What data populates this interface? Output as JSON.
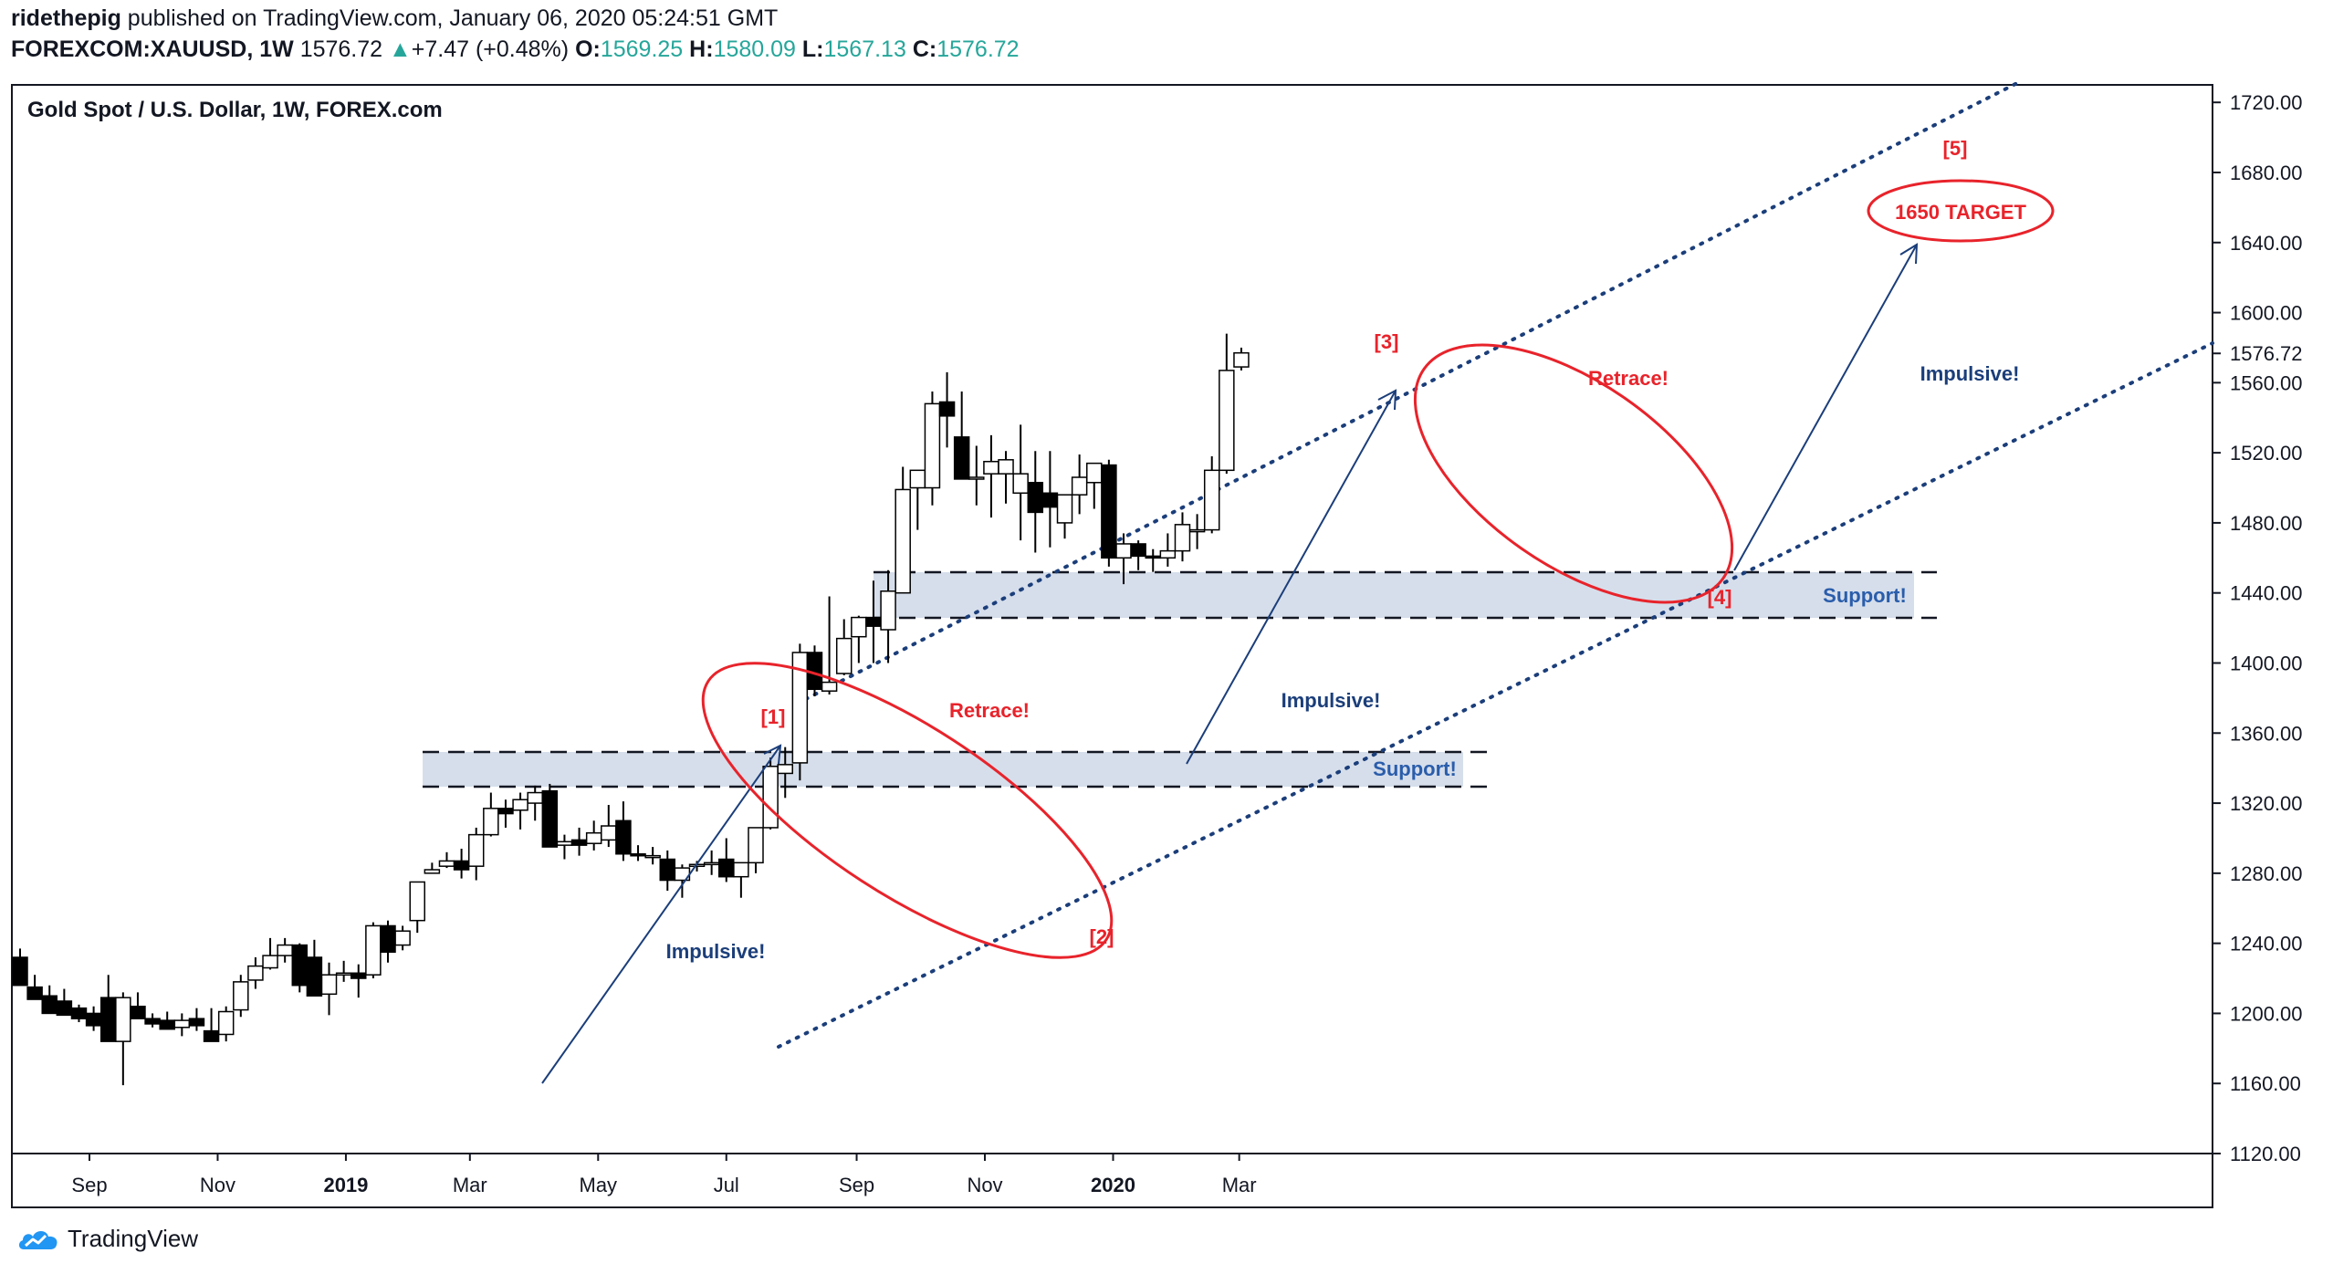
{
  "header": {
    "author": "ridethepig",
    "published_text": "published on TradingView.com, January 06, 2020 05:24:51 GMT",
    "symbol": "FOREXCOM:XAUUSD, 1W",
    "last_price": "1576.72",
    "change_arrow": "▲",
    "change": "+7.47 (+0.48%)",
    "open_label": "O:",
    "open": "1569.25",
    "high_label": "H:",
    "high": "1580.09",
    "low_label": "L:",
    "low": "1567.13",
    "close_label": "C:",
    "close": "1576.72"
  },
  "footer": {
    "brand": "TradingView"
  },
  "colors": {
    "up_candle_fill": "#ffffff",
    "down_candle_fill": "#000000",
    "annotation_red": "#e8232b",
    "annotation_blue": "#1b3e7a",
    "zone_fill": "#d6deeb",
    "change_green": "#26a69a"
  },
  "chart_data": {
    "type": "candlestick",
    "title": "Gold Spot / U.S. Dollar, 1W, FOREX.com",
    "ylim": [
      1120,
      1730
    ],
    "y_ticks": [
      "1720.00",
      "1680.00",
      "1640.00",
      "1600.00",
      "1560.00",
      "1520.00",
      "1480.00",
      "1440.00",
      "1400.00",
      "1360.00",
      "1320.00",
      "1280.00",
      "1240.00",
      "1200.00",
      "1160.00",
      "1120.00"
    ],
    "last_price_label": "1576.72",
    "last_price": 1576.72,
    "x_start": "2018-07-30",
    "x_ticks": [
      {
        "label": "Sep",
        "date": "2018-09-01",
        "bold": false
      },
      {
        "label": "Nov",
        "date": "2018-11-01",
        "bold": false
      },
      {
        "label": "2019",
        "date": "2019-01-01",
        "bold": true
      },
      {
        "label": "Mar",
        "date": "2019-03-01",
        "bold": false
      },
      {
        "label": "May",
        "date": "2019-05-01",
        "bold": false
      },
      {
        "label": "Jul",
        "date": "2019-07-01",
        "bold": false
      },
      {
        "label": "Sep",
        "date": "2019-09-01",
        "bold": false
      },
      {
        "label": "Nov",
        "date": "2019-11-01",
        "bold": false
      },
      {
        "label": "2020",
        "date": "2020-01-01",
        "bold": true
      },
      {
        "label": "Mar",
        "date": "2020-03-01",
        "bold": false
      }
    ],
    "candles_ohlc": [
      [
        1232,
        1237,
        1225,
        1216
      ],
      [
        1215,
        1222,
        1210,
        1208
      ],
      [
        1210,
        1216,
        1205,
        1200
      ],
      [
        1207,
        1214,
        1201,
        1199
      ],
      [
        1203,
        1205,
        1195,
        1197
      ],
      [
        1200,
        1204,
        1190,
        1193
      ],
      [
        1209,
        1222,
        1184,
        1184
      ],
      [
        1184,
        1212,
        1159,
        1209
      ],
      [
        1204,
        1212,
        1201,
        1197
      ],
      [
        1197,
        1200,
        1192,
        1194
      ],
      [
        1196,
        1201,
        1192,
        1191
      ],
      [
        1192,
        1200,
        1187,
        1196
      ],
      [
        1197,
        1203,
        1190,
        1193
      ],
      [
        1190,
        1203,
        1186,
        1184
      ],
      [
        1188,
        1204,
        1184,
        1201
      ],
      [
        1202,
        1222,
        1198,
        1218
      ],
      [
        1219,
        1232,
        1214,
        1227
      ],
      [
        1226,
        1243,
        1225,
        1233
      ],
      [
        1233,
        1243,
        1229,
        1239
      ],
      [
        1239,
        1240,
        1212,
        1216
      ],
      [
        1232,
        1242,
        1226,
        1210
      ],
      [
        1211,
        1229,
        1199,
        1222
      ],
      [
        1222,
        1230,
        1218,
        1223
      ],
      [
        1223,
        1228,
        1209,
        1220
      ],
      [
        1222,
        1252,
        1220,
        1250
      ],
      [
        1250,
        1253,
        1229,
        1235
      ],
      [
        1239,
        1250,
        1236,
        1247
      ],
      [
        1253,
        1272,
        1246,
        1275
      ],
      [
        1280,
        1286,
        1280,
        1282
      ],
      [
        1284,
        1292,
        1283,
        1287
      ],
      [
        1287,
        1294,
        1277,
        1282
      ],
      [
        1284,
        1306,
        1276,
        1302
      ],
      [
        1302,
        1326,
        1301,
        1317
      ],
      [
        1317,
        1322,
        1306,
        1314
      ],
      [
        1316,
        1326,
        1305,
        1322
      ],
      [
        1320,
        1330,
        1310,
        1326
      ],
      [
        1327,
        1331,
        1306,
        1295
      ],
      [
        1296,
        1302,
        1288,
        1298
      ],
      [
        1299,
        1306,
        1290,
        1296
      ],
      [
        1297,
        1310,
        1293,
        1303
      ],
      [
        1299,
        1319,
        1295,
        1307
      ],
      [
        1310,
        1321,
        1287,
        1291
      ],
      [
        1291,
        1296,
        1287,
        1290
      ],
      [
        1290,
        1295,
        1285,
        1290
      ],
      [
        1288,
        1293,
        1270,
        1276
      ],
      [
        1276,
        1285,
        1266,
        1283
      ],
      [
        1284,
        1287,
        1281,
        1285
      ],
      [
        1285,
        1293,
        1279,
        1286
      ],
      [
        1288,
        1300,
        1275,
        1278
      ],
      [
        1278,
        1286,
        1266,
        1286
      ],
      [
        1286,
        1305,
        1280,
        1306
      ],
      [
        1306,
        1346,
        1305,
        1341
      ],
      [
        1337,
        1352,
        1323,
        1342
      ],
      [
        1343,
        1411,
        1333,
        1406
      ],
      [
        1406,
        1410,
        1381,
        1385
      ],
      [
        1384,
        1438,
        1382,
        1389
      ],
      [
        1394,
        1425,
        1393,
        1414
      ],
      [
        1415,
        1427,
        1400,
        1426
      ],
      [
        1426,
        1447,
        1400,
        1421
      ],
      [
        1419,
        1453,
        1400,
        1441
      ],
      [
        1440,
        1512,
        1440,
        1499
      ],
      [
        1500,
        1510,
        1476,
        1510
      ],
      [
        1500,
        1555,
        1490,
        1548
      ],
      [
        1549,
        1566,
        1523,
        1541
      ],
      [
        1529,
        1555,
        1512,
        1505
      ],
      [
        1506,
        1524,
        1490,
        1506
      ],
      [
        1508,
        1530,
        1483,
        1515
      ],
      [
        1508,
        1521,
        1491,
        1516
      ],
      [
        1497,
        1536,
        1470,
        1508
      ],
      [
        1503,
        1521,
        1463,
        1486
      ],
      [
        1497,
        1521,
        1466,
        1489
      ],
      [
        1480,
        1495,
        1471,
        1496
      ],
      [
        1496,
        1519,
        1485,
        1506
      ],
      [
        1503,
        1510,
        1488,
        1514
      ],
      [
        1513,
        1516,
        1455,
        1460
      ],
      [
        1460,
        1474,
        1445,
        1468
      ],
      [
        1468,
        1470,
        1453,
        1461
      ],
      [
        1461,
        1465,
        1452,
        1460
      ],
      [
        1460,
        1474,
        1455,
        1464
      ],
      [
        1464,
        1486,
        1458,
        1479
      ],
      [
        1476,
        1485,
        1465,
        1476
      ],
      [
        1476,
        1518,
        1474,
        1510
      ],
      [
        1510,
        1588,
        1508,
        1567
      ],
      [
        1569,
        1580,
        1567,
        1577
      ]
    ],
    "overlays": [
      {
        "type": "support_zone",
        "label": "Support!",
        "from": 1328,
        "to": 1350
      },
      {
        "type": "support_zone",
        "label": "Support!",
        "from": 1425,
        "to": 1452
      }
    ],
    "annotations": {
      "wave1": "[1]",
      "wave2": "[2]",
      "wave3": "[3]",
      "wave4": "[4]",
      "wave5": "[5]",
      "target": "1650 TARGET",
      "retrace1": "Retrace!",
      "retrace2": "Retrace!",
      "impulsive1": "Impulsive!",
      "impulsive2": "Impulsive!",
      "impulsive3": "Impulsive!",
      "support1": "Support!",
      "support2": "Support!"
    }
  }
}
